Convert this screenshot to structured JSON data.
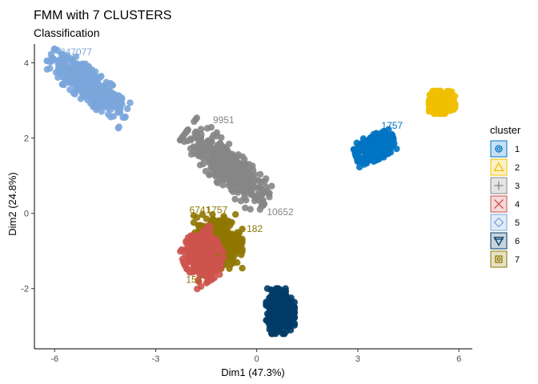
{
  "chart_data": {
    "type": "scatter",
    "title": "FMM with 7 CLUSTERS",
    "subtitle": "Classification",
    "xlabel": "Dim1 (47.3%)",
    "ylabel": "Dim2 (24.8%)",
    "xlim": [
      -6.6,
      6.4
    ],
    "ylim": [
      -3.6,
      4.5
    ],
    "xticks": [
      -6,
      -3,
      0,
      3,
      6
    ],
    "yticks": [
      -2,
      0,
      2,
      4
    ],
    "grid": false,
    "legend": {
      "title": "cluster",
      "position": "right"
    },
    "series": [
      {
        "name": "1",
        "color": "#0073C2",
        "shape": "circle",
        "center": [
          3.5,
          1.75
        ],
        "spread": [
          0.5,
          0.28
        ],
        "angle": 20
      },
      {
        "name": "2",
        "color": "#EFC000",
        "shape": "triangle",
        "center": [
          5.5,
          2.95
        ],
        "spread": [
          0.32,
          0.25
        ],
        "angle": 0
      },
      {
        "name": "3",
        "color": "#868686",
        "shape": "plus",
        "center": [
          -0.9,
          1.25
        ],
        "spread": [
          1.25,
          0.42
        ],
        "angle": -40
      },
      {
        "name": "4",
        "color": "#CD534C",
        "shape": "x",
        "center": [
          -1.6,
          -1.15
        ],
        "spread": [
          0.55,
          0.48
        ],
        "angle": -60
      },
      {
        "name": "5",
        "color": "#7AA6DC",
        "shape": "diamond",
        "center": [
          -5.0,
          3.4
        ],
        "spread": [
          1.15,
          0.35
        ],
        "angle": -35
      },
      {
        "name": "6",
        "color": "#003C67",
        "shape": "triangle-down",
        "center": [
          0.7,
          -2.6
        ],
        "spread": [
          0.35,
          0.5
        ],
        "angle": 0
      },
      {
        "name": "7",
        "color": "#8F7700",
        "shape": "square",
        "center": [
          -1.15,
          -0.75
        ],
        "spread": [
          0.6,
          0.6
        ],
        "angle": 0
      }
    ],
    "point_labels": [
      {
        "text": "4847077",
        "x": -6.0,
        "y": 4.2,
        "color": "#7AA6DC"
      },
      {
        "text": "9951",
        "x": -1.3,
        "y": 2.4,
        "color": "#868686"
      },
      {
        "text": "10652",
        "x": 0.3,
        "y": -0.05,
        "color": "#868686"
      },
      {
        "text": "6741",
        "x": -2.0,
        "y": 0.0,
        "color": "#8F7700"
      },
      {
        "text": "1757",
        "x": -1.5,
        "y": 0.0,
        "color": "#8F7700"
      },
      {
        "text": "182",
        "x": -0.3,
        "y": -0.5,
        "color": "#8F7700"
      },
      {
        "text": "1757",
        "x": 3.7,
        "y": 2.25,
        "color": "#0073C2"
      },
      {
        "text": "152",
        "x": -2.1,
        "y": -1.85,
        "color": "#8F7700"
      }
    ]
  }
}
